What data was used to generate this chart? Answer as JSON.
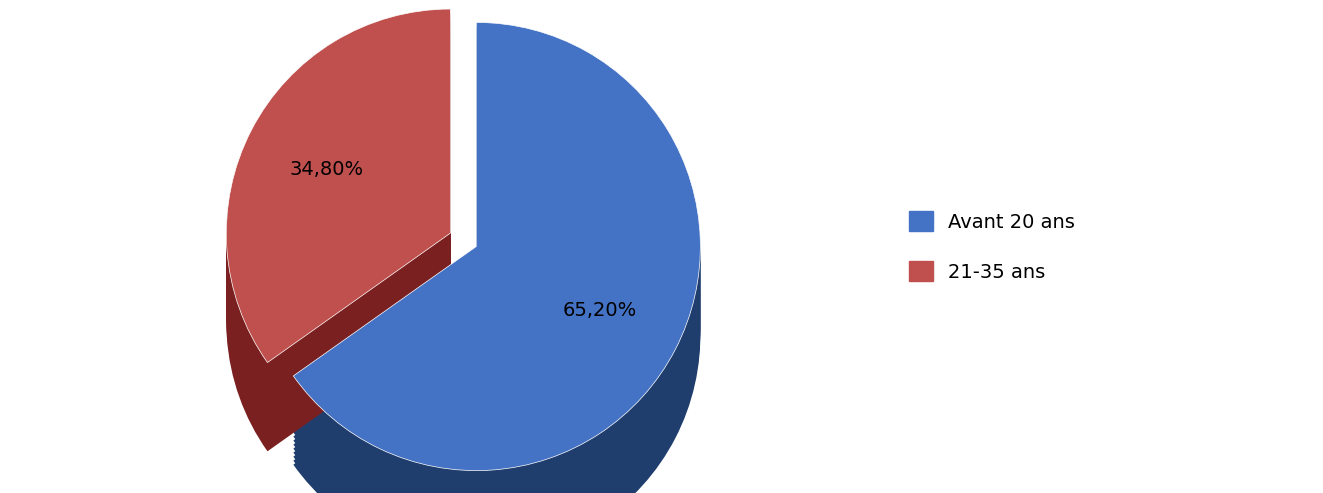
{
  "labels": [
    "Avant 20 ans",
    "21-35 ans"
  ],
  "values": [
    65.2,
    34.8
  ],
  "colors_top": [
    "#4472C4",
    "#C0504D"
  ],
  "colors_side": [
    "#1F3E6E",
    "#7B2020"
  ],
  "explode": [
    0.0,
    0.13
  ],
  "label_texts": [
    "65,20%",
    "34,80%"
  ],
  "legend_labels": [
    "Avant 20 ans",
    "21-35 ans"
  ],
  "background_color": "#ffffff",
  "label_fontsize": 14,
  "legend_fontsize": 14,
  "startangle": 90,
  "n_depth_layers": 22,
  "depth_scale": 0.018
}
